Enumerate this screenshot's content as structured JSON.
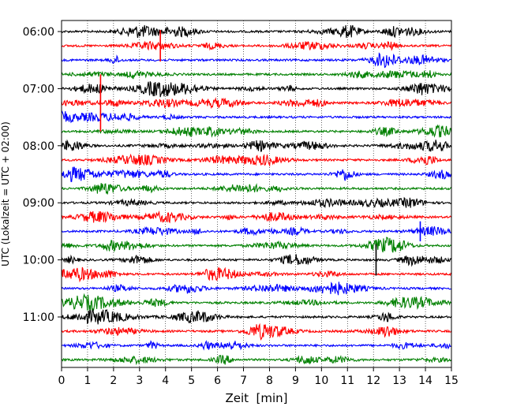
{
  "chart_data": {
    "type": "line",
    "title": "",
    "xlabel": "Zeit  [min]",
    "ylabel": "UTC (Lokalzeit = UTC + 02:00)",
    "xlim": [
      0,
      15
    ],
    "x_ticks": [
      "0",
      "1",
      "2",
      "3",
      "4",
      "5",
      "6",
      "7",
      "8",
      "9",
      "10",
      "11",
      "12",
      "13",
      "14",
      "15"
    ],
    "y_ticks": [
      "06:00",
      "07:00",
      "08:00",
      "09:00",
      "10:00",
      "11:00"
    ],
    "grid": "vertical dotted",
    "trace_colors": [
      "#000000",
      "#ff0000",
      "#0000ff",
      "#008000"
    ],
    "trace_interval_min": 15,
    "trace_start": "06:00",
    "trace_count": 24,
    "events": [
      {
        "trace": 1,
        "x": 3.8,
        "amp": 2.2
      },
      {
        "trace": 5,
        "x": 1.5,
        "amp": 4.0
      },
      {
        "trace": 16,
        "x": 12.1,
        "amp": 2.2
      },
      {
        "trace": 14,
        "x": 13.8,
        "amp": 1.4
      }
    ]
  }
}
